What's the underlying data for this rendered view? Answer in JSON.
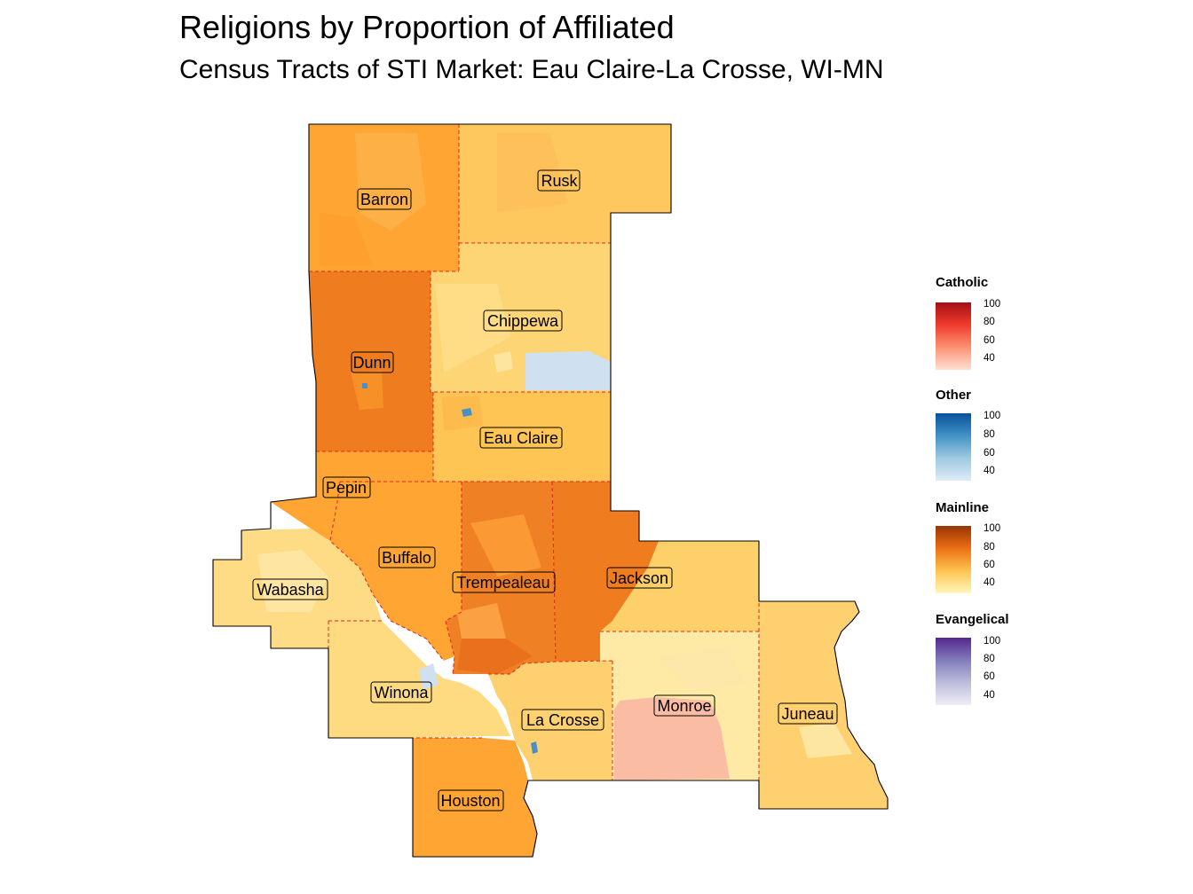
{
  "title": "Religions by Proportion of Affiliated",
  "subtitle": "Census Tracts of STI Market: Eau Claire-La Crosse, WI-MN",
  "counties": [
    {
      "name": "Barron",
      "dominant": "Mainline"
    },
    {
      "name": "Rusk",
      "dominant": "Mainline"
    },
    {
      "name": "Chippewa",
      "dominant": "Mainline"
    },
    {
      "name": "Dunn",
      "dominant": "Mainline"
    },
    {
      "name": "Eau Claire",
      "dominant": "Mainline"
    },
    {
      "name": "Pepin",
      "dominant": "Mainline"
    },
    {
      "name": "Buffalo",
      "dominant": "Mainline"
    },
    {
      "name": "Trempealeau",
      "dominant": "Mainline"
    },
    {
      "name": "Jackson",
      "dominant": "Mainline"
    },
    {
      "name": "Wabasha",
      "dominant": "Mainline"
    },
    {
      "name": "Winona",
      "dominant": "Mainline"
    },
    {
      "name": "La Crosse",
      "dominant": "Mainline"
    },
    {
      "name": "Monroe",
      "dominant": "Mainline"
    },
    {
      "name": "Juneau",
      "dominant": "Mainline"
    },
    {
      "name": "Houston",
      "dominant": "Mainline"
    }
  ],
  "legend": [
    {
      "title": "Catholic",
      "ticks": [
        "100",
        "80",
        "60",
        "40"
      ],
      "colors": [
        "#fee0d2",
        "#fc9272",
        "#ef3b2c",
        "#a50f15"
      ]
    },
    {
      "title": "Other",
      "ticks": [
        "100",
        "80",
        "60",
        "40"
      ],
      "colors": [
        "#deebf7",
        "#9ecae1",
        "#4292c6",
        "#08519c"
      ]
    },
    {
      "title": "Mainline",
      "ticks": [
        "100",
        "80",
        "60",
        "40"
      ],
      "colors": [
        "#fff7bc",
        "#fec44f",
        "#ec7014",
        "#993404"
      ]
    },
    {
      "title": "Evangelical",
      "ticks": [
        "100",
        "80",
        "60",
        "40"
      ],
      "colors": [
        "#efedf5",
        "#bcbddc",
        "#807dba",
        "#54278f"
      ]
    }
  ],
  "colors": {
    "mainline_light": "#fed976",
    "mainline_mid": "#fea534",
    "mainline_dark": "#ee7b1e",
    "catholic_light": "#fbbda4",
    "other_light": "#cfe0f0",
    "county_border": "#e8231e"
  }
}
